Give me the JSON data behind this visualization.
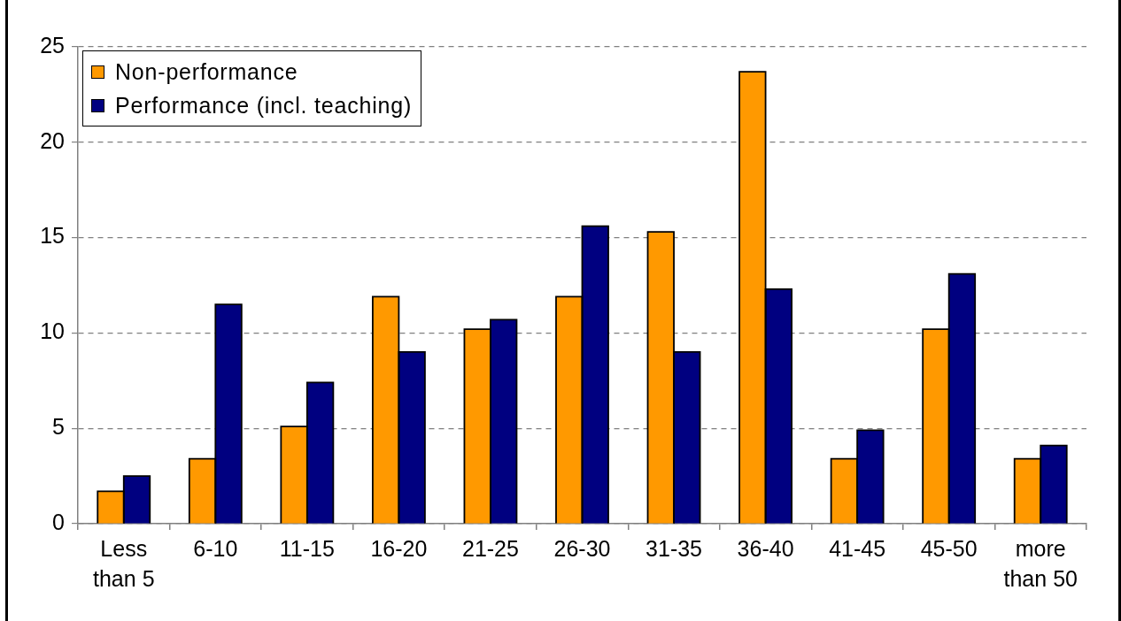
{
  "chart_data": {
    "type": "bar",
    "categories": [
      "Less than 5",
      "6-10",
      "11-15",
      "16-20",
      "21-25",
      "26-30",
      "31-35",
      "36-40",
      "41-45",
      "45-50",
      "more than 50"
    ],
    "series": [
      {
        "name": "Non-performance",
        "color": "#ff9900",
        "values": [
          1.7,
          3.4,
          5.1,
          11.9,
          10.2,
          11.9,
          15.3,
          23.7,
          3.4,
          10.2,
          3.4
        ]
      },
      {
        "name": "Performance (incl. teaching)",
        "color": "#000080",
        "values": [
          2.5,
          11.5,
          7.4,
          9.0,
          10.7,
          15.6,
          9.0,
          12.3,
          4.9,
          13.1,
          4.1
        ]
      }
    ],
    "ylim": [
      0,
      25
    ],
    "yticks": [
      0,
      5,
      10,
      15,
      20,
      25
    ],
    "grid": "y",
    "legend": "top left"
  }
}
